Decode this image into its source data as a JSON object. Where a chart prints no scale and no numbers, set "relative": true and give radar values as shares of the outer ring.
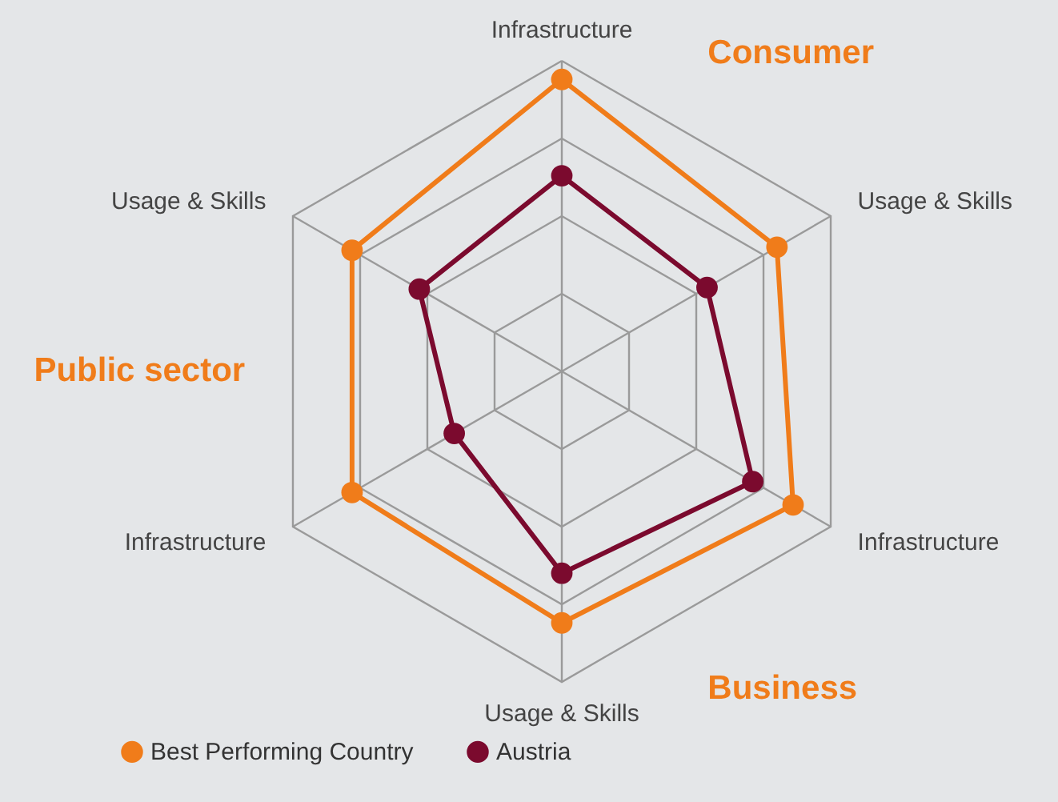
{
  "chart_data": {
    "type": "radar",
    "relative": true,
    "grid": true,
    "marker": "circle",
    "legend": "bottom",
    "categories": [
      "Infrastructure",
      "Usage & Skills",
      "Infrastructure",
      "Usage & Skills",
      "Infrastructure",
      "Usage & Skills"
    ],
    "series": [
      {
        "name": "Best Performing Country",
        "color": "#f07c1a",
        "values": [
          0.94,
          0.8,
          0.86,
          0.81,
          0.78,
          0.78
        ]
      },
      {
        "name": "Austria",
        "color": "#7b0a2e",
        "values": [
          0.63,
          0.54,
          0.71,
          0.65,
          0.4,
          0.53
        ]
      }
    ],
    "annotations": [
      "Consumer",
      "Business",
      "Public sector"
    ]
  }
}
